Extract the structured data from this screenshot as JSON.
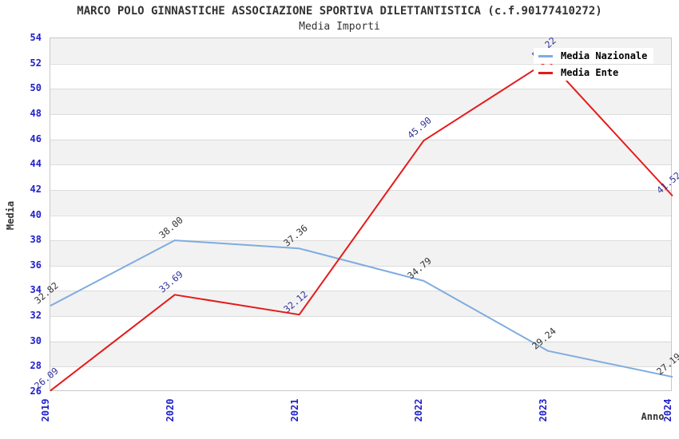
{
  "title": "MARCO POLO GINNASTICHE ASSOCIAZIONE SPORTIVA DILETTANTISTICA (c.f.90177410272)",
  "subtitle": "Media Importi",
  "chart_data": {
    "type": "line",
    "categories": [
      "2019",
      "2020",
      "2021",
      "2022",
      "2023",
      "2024"
    ],
    "series": [
      {
        "name": "Media Nazionale",
        "color": "#7FACE0",
        "label_color": "#333333",
        "values": [
          32.82,
          38.0,
          37.36,
          34.79,
          29.24,
          27.19
        ],
        "labels": [
          "32.82",
          "38.00",
          "37.36",
          "34.79",
          "29.24",
          "27.19"
        ]
      },
      {
        "name": "Media Ente",
        "color": "#E61A1A",
        "label_color": "#32329B",
        "values": [
          26.09,
          33.69,
          32.12,
          45.9,
          52.22,
          41.52
        ],
        "labels": [
          "26.09",
          "33.69",
          "32.12",
          "45.90",
          "52.22",
          "41.52"
        ]
      }
    ],
    "xlabel": "Anno",
    "ylabel": "Media",
    "ylim": [
      26,
      54
    ],
    "ytick_step": 2,
    "yticks": [
      "54",
      "52",
      "50",
      "48",
      "46",
      "44",
      "42",
      "40",
      "38",
      "36",
      "34",
      "32",
      "30",
      "28",
      "26"
    ],
    "grid": "horizontal-bands",
    "legend_position": "top-right"
  },
  "colors": {
    "axis_tick": "#2020CC",
    "band_gray": "#F2F2F2",
    "band_white": "#FFFFFF",
    "gridline": "#DCDCDC",
    "plot_border": "#C8C8C8",
    "text": "#333333"
  }
}
